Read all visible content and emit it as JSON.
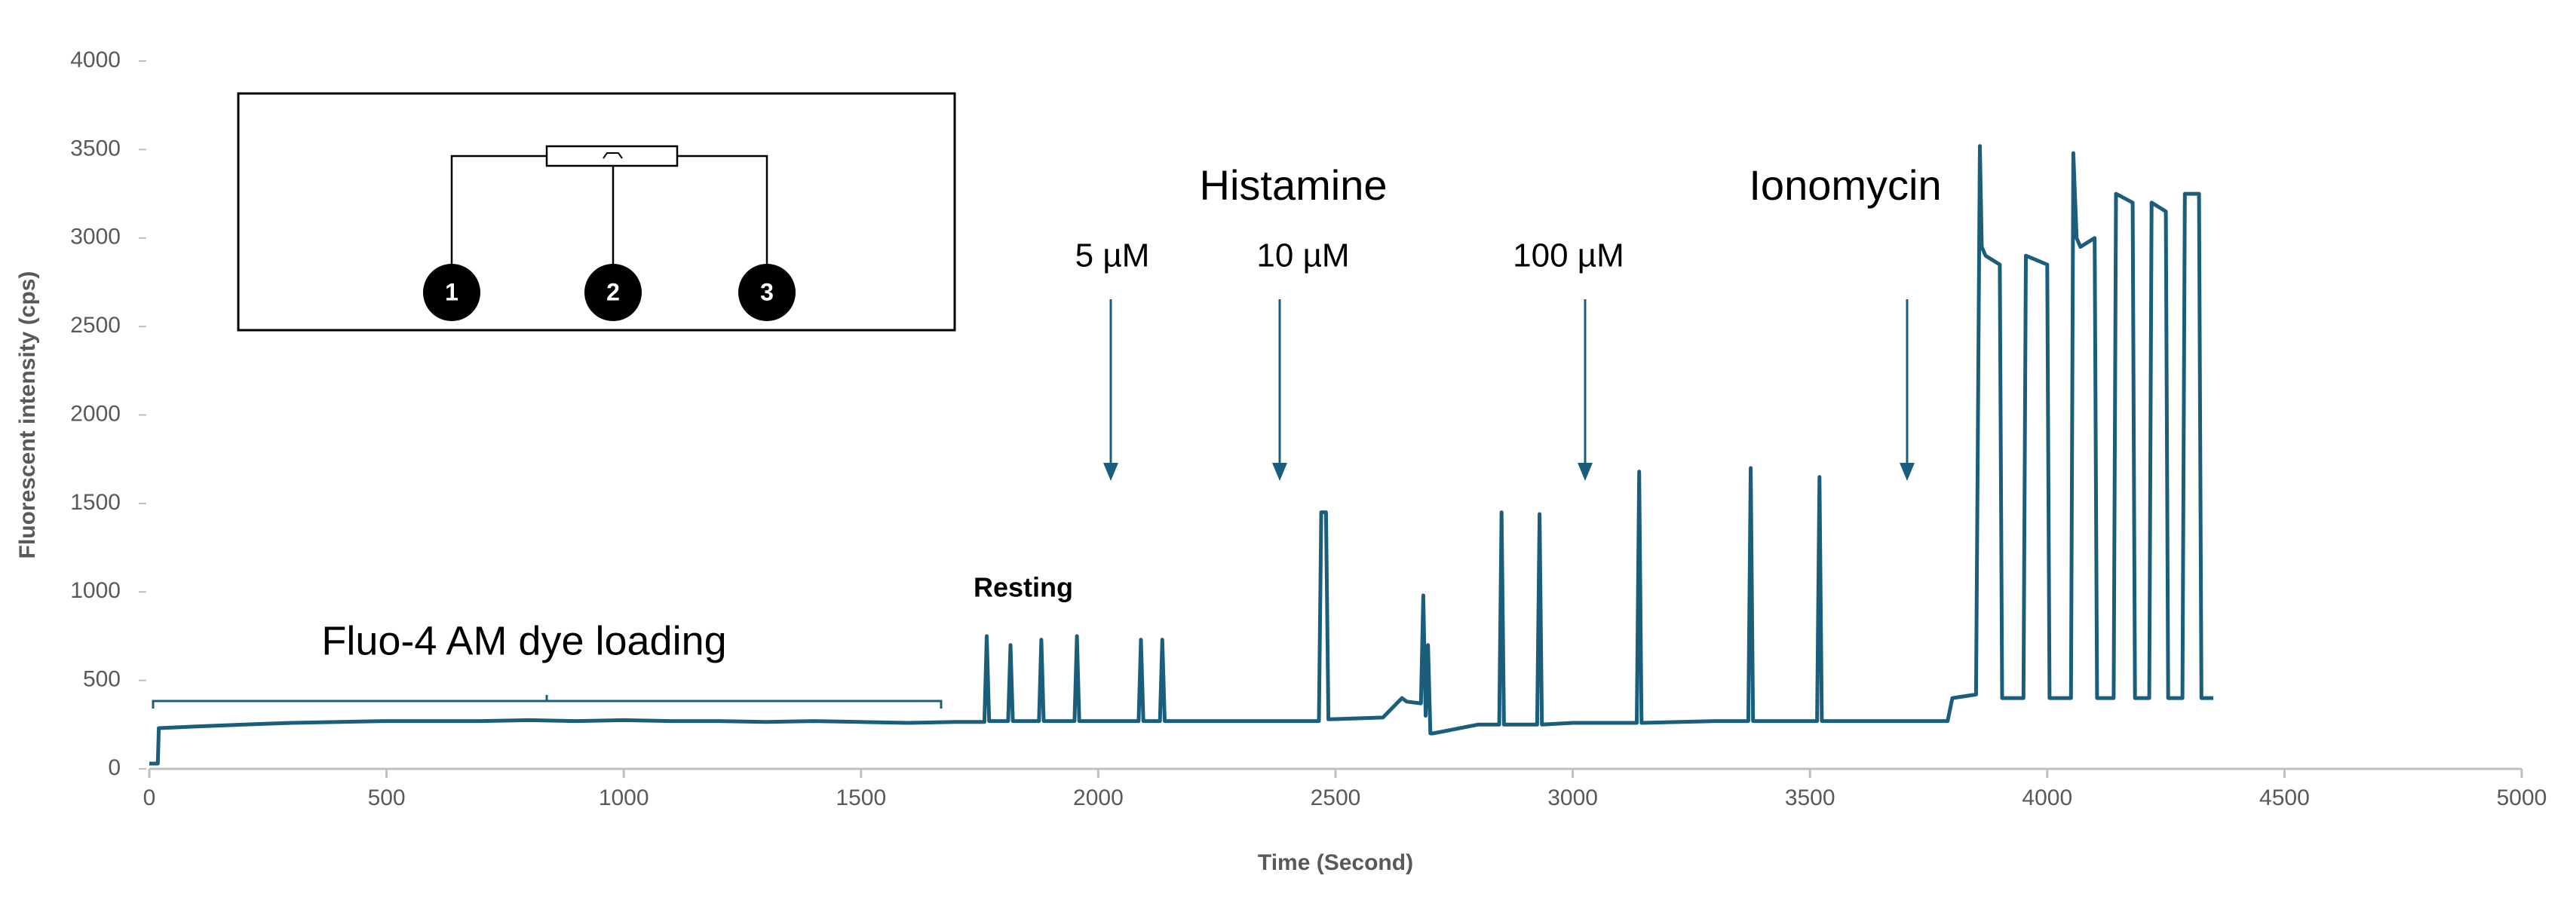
{
  "chart_data": {
    "type": "line",
    "xlabel": "Time (Second)",
    "ylabel": "Fluorescent intensity (cps)",
    "xlim": [
      0,
      5000
    ],
    "xticks": [
      0,
      500,
      1000,
      1500,
      2000,
      2500,
      3000,
      3500,
      4000,
      4500,
      5000
    ],
    "ylim": [
      0,
      4000
    ],
    "yticks": [
      0,
      500,
      1000,
      1500,
      2000,
      2500,
      3000,
      3500,
      4000
    ],
    "grid": false,
    "series": [
      {
        "color": "#1b5e7b",
        "x": [
          0,
          18,
          20,
          100,
          200,
          300,
          400,
          500,
          600,
          700,
          800,
          900,
          1000,
          1100,
          1200,
          1300,
          1400,
          1500,
          1600,
          1700,
          1760,
          1765,
          1770,
          1810,
          1815,
          1820,
          1875,
          1880,
          1885,
          1950,
          1955,
          1960,
          2085,
          2090,
          2095,
          2130,
          2135,
          2140,
          2300,
          2465,
          2470,
          2480,
          2485,
          2600,
          2640,
          2650,
          2680,
          2685,
          2690,
          2695,
          2700,
          2705,
          2800,
          2845,
          2850,
          2855,
          2925,
          2930,
          2935,
          3000,
          3135,
          3140,
          3145,
          3300,
          3370,
          3375,
          3380,
          3515,
          3520,
          3525,
          3700,
          3790,
          3800,
          3850,
          3858,
          3862,
          3870,
          3900,
          3905,
          3950,
          3955,
          4000,
          4005,
          4050,
          4055,
          4062,
          4070,
          4100,
          4105,
          4140,
          4145,
          4180,
          4185,
          4215,
          4220,
          4250,
          4255,
          4285,
          4290,
          4320,
          4325,
          4350
        ],
        "values": [
          30,
          30,
          230,
          240,
          250,
          260,
          265,
          270,
          270,
          270,
          275,
          270,
          275,
          270,
          270,
          265,
          270,
          265,
          260,
          265,
          265,
          750,
          270,
          270,
          700,
          270,
          270,
          730,
          270,
          270,
          750,
          270,
          270,
          730,
          270,
          270,
          730,
          270,
          270,
          270,
          1450,
          1450,
          280,
          290,
          400,
          380,
          370,
          980,
          300,
          700,
          200,
          200,
          250,
          250,
          1450,
          250,
          250,
          1440,
          250,
          260,
          260,
          1680,
          260,
          270,
          270,
          1700,
          270,
          270,
          1650,
          270,
          270,
          270,
          400,
          420,
          3520,
          2950,
          2900,
          2850,
          400,
          400,
          2900,
          2850,
          400,
          400,
          3480,
          3000,
          2950,
          3000,
          400,
          400,
          3250,
          3200,
          400,
          400,
          3200,
          3150,
          400,
          400,
          3250,
          3250,
          400,
          400
        ]
      }
    ],
    "annotations": {
      "histamine": "Histamine",
      "dose_5": "5 µM",
      "dose_10": "10 µM",
      "dose_100": "100 µM",
      "ionomycin": "Ionomycin",
      "resting": "Resting",
      "loading": "Fluo-4 AM dye loading"
    },
    "inset": {
      "labels": [
        "1",
        "2",
        "3"
      ]
    }
  }
}
